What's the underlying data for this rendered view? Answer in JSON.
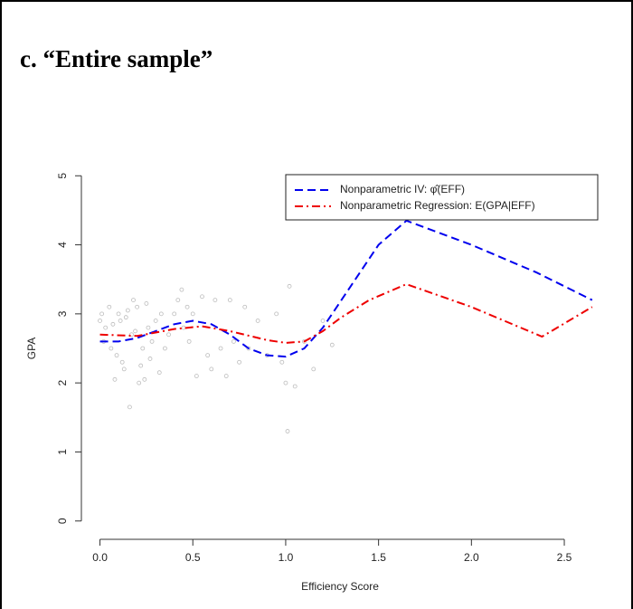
{
  "chart_data": {
    "type": "line",
    "title": "c. “Entire sample”",
    "x_label": "Efficiency Score",
    "y_label": "GPA",
    "xlim": [
      -0.1,
      2.68
    ],
    "ylim": [
      -0.2,
      5.2
    ],
    "xticks": [
      {
        "value": 0,
        "label": "0.0"
      },
      0.5,
      {
        "value": 1,
        "label": "1.0"
      },
      1.5,
      {
        "value": 2,
        "label": "2.0"
      },
      2.5
    ],
    "yticks": [
      0,
      1,
      2,
      3,
      4,
      5
    ],
    "legend": "top-right",
    "series": [
      {
        "name": "Nonparametric IV: φ̂(EFF)",
        "color": "#0000ee",
        "dash": "dashed",
        "x": [
          0.0,
          0.1,
          0.2,
          0.3,
          0.4,
          0.5,
          0.6,
          0.7,
          0.8,
          0.9,
          1.0,
          1.1,
          1.2,
          1.3,
          1.4,
          1.5,
          1.65,
          2.0,
          2.35,
          2.65
        ],
        "values": [
          2.6,
          2.6,
          2.65,
          2.75,
          2.85,
          2.9,
          2.85,
          2.7,
          2.5,
          2.4,
          2.38,
          2.5,
          2.8,
          3.2,
          3.6,
          4.0,
          4.35,
          4.0,
          3.6,
          3.2
        ]
      },
      {
        "name": "Nonparametric Regression: E(GPA|EFF)",
        "color": "#ee0000",
        "dash": "dotdash",
        "x": [
          0.0,
          0.2,
          0.4,
          0.55,
          0.7,
          0.9,
          1.0,
          1.1,
          1.2,
          1.3,
          1.45,
          1.65,
          2.0,
          2.38,
          2.65
        ],
        "values": [
          2.7,
          2.68,
          2.78,
          2.82,
          2.75,
          2.62,
          2.58,
          2.6,
          2.75,
          2.95,
          3.2,
          3.43,
          3.1,
          2.67,
          3.1
        ]
      }
    ],
    "points": {
      "color": "#bbbbbb",
      "x": [
        0.0,
        0.01,
        0.02,
        0.03,
        0.05,
        0.06,
        0.08,
        0.1,
        0.11,
        0.12,
        0.13,
        0.15,
        0.16,
        0.17,
        0.18,
        0.2,
        0.21,
        0.22,
        0.23,
        0.25,
        0.26,
        0.28,
        0.3,
        0.32,
        0.33,
        0.35,
        0.37,
        0.4,
        0.42,
        0.44,
        0.45,
        0.47,
        0.48,
        0.5,
        0.52,
        0.55,
        0.58,
        0.6,
        0.62,
        0.65,
        0.68,
        0.7,
        0.72,
        0.75,
        0.78,
        0.8,
        0.85,
        0.9,
        0.95,
        0.98,
        1.0,
        1.01,
        1.02,
        1.05,
        1.1,
        1.15,
        1.2,
        1.25,
        0.14,
        0.19,
        0.24,
        0.09,
        0.07,
        0.27
      ],
      "y": [
        2.9,
        3.0,
        2.6,
        2.8,
        3.1,
        2.5,
        2.05,
        3.0,
        2.9,
        2.3,
        2.2,
        3.05,
        1.65,
        2.7,
        3.2,
        3.1,
        2.0,
        2.25,
        2.5,
        3.15,
        2.8,
        2.6,
        2.9,
        2.15,
        3.0,
        2.5,
        2.7,
        3.0,
        3.2,
        3.35,
        2.8,
        3.1,
        2.6,
        3.0,
        2.1,
        3.25,
        2.4,
        2.2,
        3.2,
        2.5,
        2.1,
        3.2,
        2.6,
        2.3,
        3.1,
        2.5,
        2.9,
        2.4,
        3.0,
        2.3,
        2.0,
        1.3,
        3.4,
        1.95,
        2.6,
        2.2,
        2.9,
        2.55,
        2.95,
        2.75,
        2.05,
        2.4,
        2.85,
        2.35
      ]
    }
  }
}
